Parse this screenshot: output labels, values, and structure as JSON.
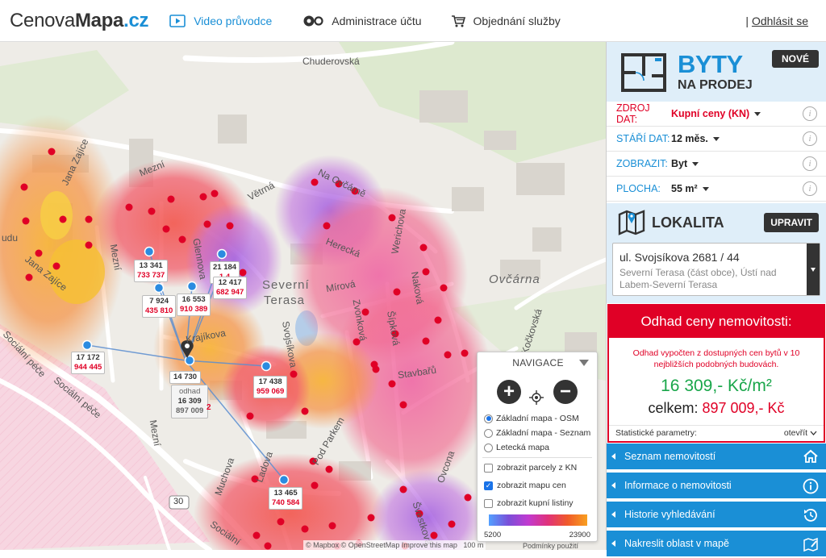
{
  "header": {
    "logo_plain": "Cenova",
    "logo_bold": "Mapa",
    "logo_tld": ".cz",
    "nav": [
      {
        "label": "Video průvodce",
        "icon": "play-icon"
      },
      {
        "label": "Administrace účtu",
        "icon": "gears-icon"
      },
      {
        "label": "Objednání služby",
        "icon": "cart-icon"
      }
    ],
    "logout_sep": "|",
    "logout": "Odhlásit se"
  },
  "map": {
    "labels": {
      "chuderovska": "Chuderovská",
      "mezni1": "Mezní",
      "mezni2": "Mezní",
      "mezni3": "Mezní",
      "jana_zajice1": "Jana Zajíce",
      "jana_zajice2": "Jana Zajíce",
      "vetrna": "Větrná",
      "glennova": "Glennova",
      "na_ovcarne": "Na Ovčárně",
      "herecka": "Herecká",
      "werichova": "Werichova",
      "severni_terasa1": "Severní",
      "severni_terasa2": "Terasa",
      "ovcarna": "Ovčárna",
      "mirova": "Mírová",
      "nakova": "Naková",
      "zvonkova": "Zvonková",
      "sipkova": "Šípková",
      "kockovska": "Kočkovská",
      "stavbaru": "Stavbařů",
      "svojsikova": "Svojsíkova",
      "krajiikova": "Krajíkova",
      "socialni_pece1": "Sociální péče",
      "socialni_pece2": "Sociální péče",
      "socialni_pece3": "Sociální",
      "pod_parkem": "Pod Parkem",
      "ladova": "Ladova",
      "muchova": "Muchova",
      "ovcona": "Ovcona",
      "svestkova": "Švestková",
      "road_30": "30",
      "hudu": "udu"
    },
    "pins": [
      {
        "count": "13 341",
        "price": "733 737"
      },
      {
        "count": "21 184",
        "price": "1 4"
      },
      {
        "count": "12 417",
        "price": "682 947"
      },
      {
        "count": "7 924",
        "price": "435 810"
      },
      {
        "count": "16 553",
        "price": "910 389"
      },
      {
        "count": "17 172",
        "price": "944 445"
      },
      {
        "count": "17 438",
        "price": "959 069"
      },
      {
        "count": "13 465",
        "price": "740 584"
      }
    ],
    "main_pin": {
      "value": "14 730",
      "label": "odhad",
      "count": "16 309",
      "price": "897 009",
      "extra": "2"
    },
    "footer": "© Mapbox © OpenStreetMap Improve this map",
    "scale": "100 m",
    "conditions": "Podmínky použití"
  },
  "navigation": {
    "title": "NAVIGACE",
    "zoom_in": "+",
    "zoom_out": "−",
    "layers": [
      {
        "label": "Základní mapa - OSM",
        "selected": true
      },
      {
        "label": "Základní mapa - Seznam",
        "selected": false
      },
      {
        "label": "Letecká mapa",
        "selected": false
      }
    ],
    "toggles": [
      {
        "label": "zobrazit parcely z KN",
        "checked": false
      },
      {
        "label": "zobrazit mapu cen",
        "checked": true
      },
      {
        "label": "zobrazit kupní listiny",
        "checked": false
      }
    ],
    "legend_min": "5200",
    "legend_max": "23900",
    "check_mark": "✓"
  },
  "panel": {
    "title": "BYTY",
    "subtitle": "NA PRODEJ",
    "new_button": "NOVÉ",
    "params": [
      {
        "key": "ZDROJ DAT:",
        "value": "Kupní ceny (KN)"
      },
      {
        "key": "STÁŘÍ DAT:",
        "value": "12 měs."
      },
      {
        "key": "ZOBRAZIT:",
        "value": "Byt"
      },
      {
        "key": "PLOCHA:",
        "value": "55 m²"
      }
    ],
    "info_glyph": "i",
    "location_title": "LOKALITA",
    "edit_button": "UPRAVIT",
    "address_street": "ul. Svojsíkova 2681 / 44",
    "address_detail": "Severní Terasa (část obce), Ústí nad Labem-Severní Terasa",
    "estimate_title": "Odhad ceny nemovitosti:",
    "estimate_note": "Odhad vypočten z dostupných cen bytů v 10 nejbližších podobných budovách.",
    "estimate_m2": "16 309,- Kč/m²",
    "estimate_total_label": "celkem:",
    "estimate_total_value": "897 009,- Kč",
    "stat_label": "Statistické parametry:",
    "stat_open": "otevřít",
    "links": [
      {
        "label": "Seznam nemovitostí",
        "icon": "home-icon"
      },
      {
        "label": "Informace o nemovitosti",
        "icon": "info-icon"
      },
      {
        "label": "Historie vyhledávání",
        "icon": "history-icon"
      },
      {
        "label": "Nakreslit oblast v mapě",
        "icon": "draw-icon"
      }
    ]
  },
  "colors": {
    "brand_blue": "#1a8fd6",
    "accent_red": "#e00026",
    "estimate_green": "#19a64a"
  }
}
